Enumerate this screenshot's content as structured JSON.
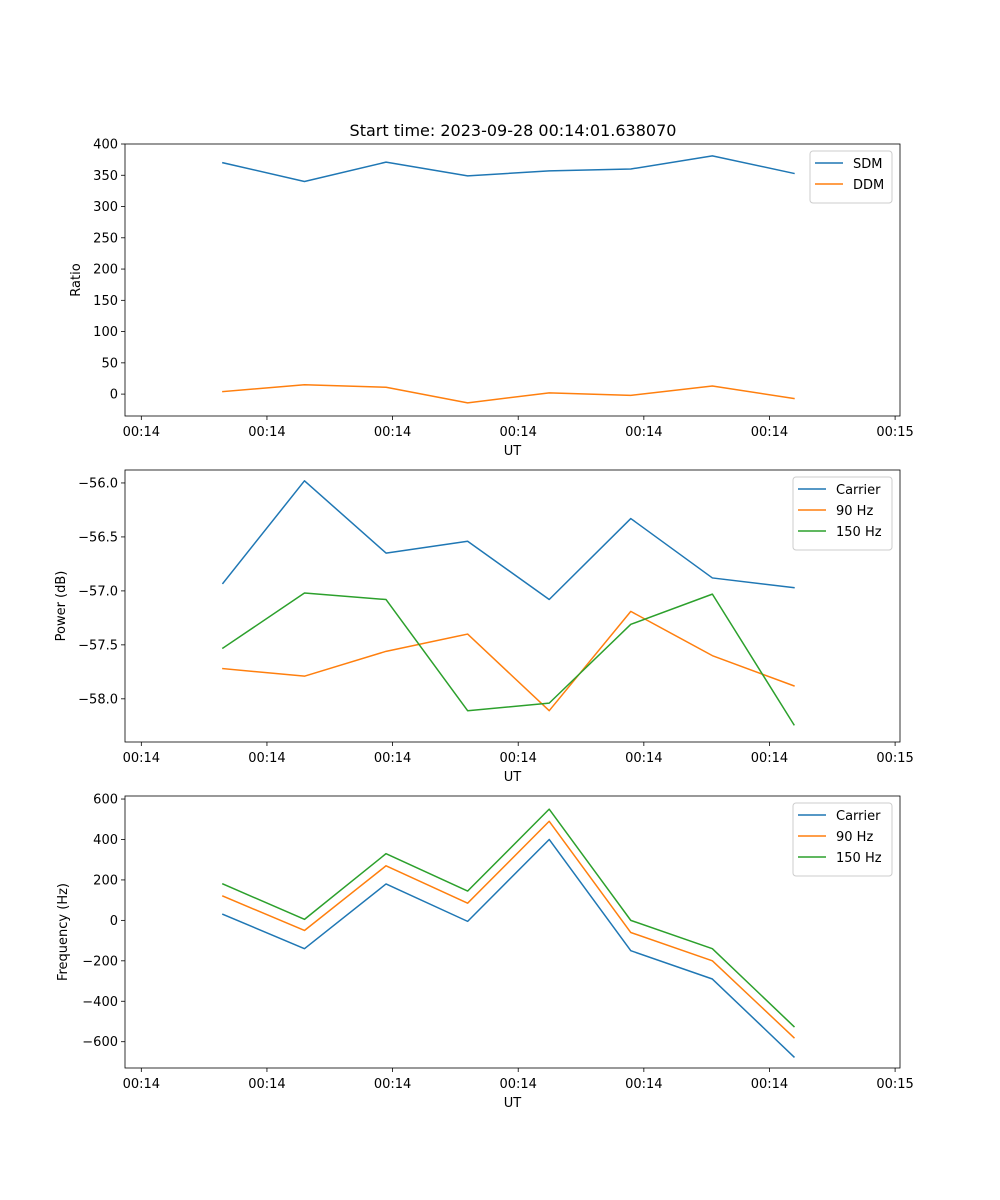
{
  "figure_title": "Start time: 2023-09-28 00:14:01.638070",
  "colors": {
    "blue": "#1f77b4",
    "orange": "#ff7f0e",
    "green": "#2ca02c"
  },
  "chart_data": [
    {
      "type": "line",
      "xlabel": "UT",
      "ylabel": "Ratio",
      "x": [
        1,
        2,
        3,
        4,
        5,
        6,
        7,
        8
      ],
      "xlim": [
        -0.2,
        9.3
      ],
      "xticks": [
        {
          "value": 0,
          "label": "00:14"
        },
        {
          "value": 1.54,
          "label": "00:14"
        },
        {
          "value": 3.08,
          "label": "00:14"
        },
        {
          "value": 4.62,
          "label": "00:14"
        },
        {
          "value": 6.16,
          "label": "00:14"
        },
        {
          "value": 7.7,
          "label": "00:14"
        },
        {
          "value": 9.24,
          "label": "00:15"
        }
      ],
      "ylim": [
        -35,
        400
      ],
      "yticks": [
        {
          "value": 0,
          "label": "0"
        },
        {
          "value": 50,
          "label": "50"
        },
        {
          "value": 100,
          "label": "100"
        },
        {
          "value": 150,
          "label": "150"
        },
        {
          "value": 200,
          "label": "200"
        },
        {
          "value": 250,
          "label": "250"
        },
        {
          "value": 300,
          "label": "300"
        },
        {
          "value": 350,
          "label": "350"
        },
        {
          "value": 400,
          "label": "400"
        }
      ],
      "legend_position": "top-right",
      "series": [
        {
          "name": "SDM",
          "color": "#1f77b4",
          "values": [
            370,
            340,
            371,
            349,
            357,
            360,
            381,
            353
          ]
        },
        {
          "name": "DDM",
          "color": "#ff7f0e",
          "values": [
            4,
            15,
            11,
            -14,
            2,
            -2,
            13,
            -7
          ]
        }
      ]
    },
    {
      "type": "line",
      "xlabel": "UT",
      "ylabel": "Power (dB)",
      "x": [
        1,
        2,
        3,
        4,
        5,
        6,
        7,
        8
      ],
      "xlim": [
        -0.2,
        9.3
      ],
      "xticks": [
        {
          "value": 0,
          "label": "00:14"
        },
        {
          "value": 1.54,
          "label": "00:14"
        },
        {
          "value": 3.08,
          "label": "00:14"
        },
        {
          "value": 4.62,
          "label": "00:14"
        },
        {
          "value": 6.16,
          "label": "00:14"
        },
        {
          "value": 7.7,
          "label": "00:14"
        },
        {
          "value": 9.24,
          "label": "00:15"
        }
      ],
      "ylim": [
        -58.4,
        -55.88
      ],
      "yticks": [
        {
          "value": -58.0,
          "label": "−58.0"
        },
        {
          "value": -57.5,
          "label": "−57.5"
        },
        {
          "value": -57.0,
          "label": "−57.0"
        },
        {
          "value": -56.5,
          "label": "−56.5"
        },
        {
          "value": -56.0,
          "label": "−56.0"
        }
      ],
      "legend_position": "top-right",
      "series": [
        {
          "name": "Carrier",
          "color": "#1f77b4",
          "values": [
            -56.93,
            -55.98,
            -56.65,
            -56.54,
            -57.08,
            -56.33,
            -56.88,
            -56.97
          ]
        },
        {
          "name": "90 Hz",
          "color": "#ff7f0e",
          "values": [
            -57.72,
            -57.79,
            -57.56,
            -57.4,
            -58.11,
            -57.19,
            -57.6,
            -57.88
          ]
        },
        {
          "name": "150 Hz",
          "color": "#2ca02c",
          "values": [
            -57.53,
            -57.02,
            -57.08,
            -58.11,
            -58.04,
            -57.31,
            -57.03,
            -58.24
          ]
        }
      ]
    },
    {
      "type": "line",
      "xlabel": "UT",
      "ylabel": "Frequency (Hz)",
      "x": [
        1,
        2,
        3,
        4,
        5,
        6,
        7,
        8
      ],
      "xlim": [
        -0.2,
        9.3
      ],
      "xticks": [
        {
          "value": 0,
          "label": "00:14"
        },
        {
          "value": 1.54,
          "label": "00:14"
        },
        {
          "value": 3.08,
          "label": "00:14"
        },
        {
          "value": 4.62,
          "label": "00:14"
        },
        {
          "value": 6.16,
          "label": "00:14"
        },
        {
          "value": 7.7,
          "label": "00:14"
        },
        {
          "value": 9.24,
          "label": "00:15"
        }
      ],
      "ylim": [
        -730,
        615
      ],
      "yticks": [
        {
          "value": -600,
          "label": "−600"
        },
        {
          "value": -400,
          "label": "−400"
        },
        {
          "value": -200,
          "label": "−200"
        },
        {
          "value": 0,
          "label": "0"
        },
        {
          "value": 200,
          "label": "200"
        },
        {
          "value": 400,
          "label": "400"
        },
        {
          "value": 600,
          "label": "600"
        }
      ],
      "legend_position": "top-right",
      "series": [
        {
          "name": "Carrier",
          "color": "#1f77b4",
          "values": [
            30,
            -140,
            180,
            -5,
            400,
            -150,
            -290,
            -675
          ]
        },
        {
          "name": "90 Hz",
          "color": "#ff7f0e",
          "values": [
            120,
            -50,
            270,
            85,
            490,
            -60,
            -200,
            -580
          ]
        },
        {
          "name": "150 Hz",
          "color": "#2ca02c",
          "values": [
            180,
            5,
            330,
            145,
            550,
            0,
            -140,
            -525
          ]
        }
      ]
    }
  ]
}
